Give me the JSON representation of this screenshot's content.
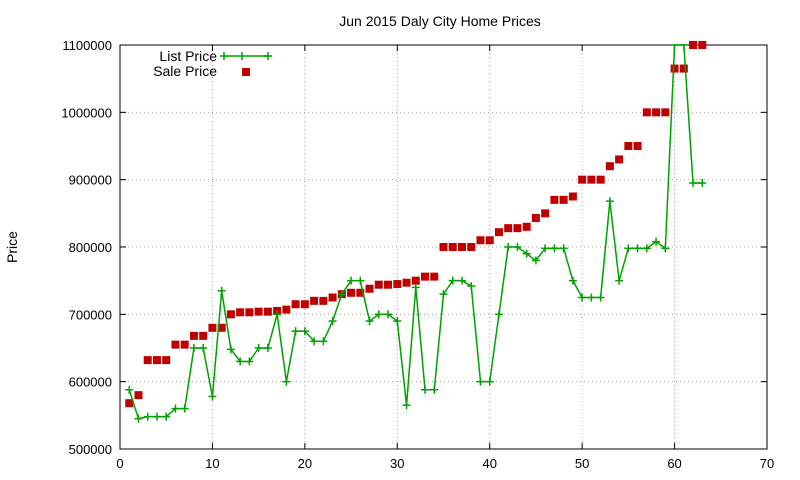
{
  "chart_data": {
    "type": "line",
    "title": "Jun 2015 Daly City Home Prices",
    "xlabel": "",
    "ylabel": "Price",
    "xlim": [
      0,
      70
    ],
    "ylim": [
      500000,
      1100000
    ],
    "xticks": [
      "0",
      "10",
      "20",
      "30",
      "40",
      "50",
      "60",
      "70"
    ],
    "yticks": [
      "500000",
      "600000",
      "700000",
      "800000",
      "900000",
      "1000000",
      "1100000"
    ],
    "grid": true,
    "legend_position": "top-left",
    "colors": {
      "list": "#00a000",
      "sale": "#c00000"
    },
    "series": [
      {
        "name": "List Price",
        "style": "line-with-plus-markers",
        "x": [
          1,
          2,
          3,
          4,
          5,
          6,
          7,
          8,
          9,
          10,
          11,
          12,
          13,
          14,
          15,
          16,
          17,
          18,
          19,
          20,
          21,
          22,
          23,
          24,
          25,
          26,
          27,
          28,
          29,
          30,
          31,
          32,
          33,
          34,
          35,
          36,
          37,
          38,
          39,
          40,
          41,
          42,
          43,
          44,
          45,
          46,
          47,
          48,
          49,
          50,
          51,
          52,
          53,
          54,
          55,
          56,
          57,
          58,
          59,
          60,
          61,
          62,
          63
        ],
        "values": [
          588000,
          545000,
          548000,
          548000,
          548000,
          560000,
          560000,
          650000,
          650000,
          578000,
          735000,
          648000,
          630000,
          630000,
          650000,
          650000,
          700000,
          600000,
          675000,
          675000,
          660000,
          660000,
          690000,
          730000,
          750000,
          750000,
          690000,
          700000,
          700000,
          690000,
          565000,
          740000,
          588000,
          588000,
          730000,
          750000,
          750000,
          742000,
          600000,
          600000,
          700000,
          800000,
          800000,
          790000,
          780000,
          798000,
          798000,
          798000,
          750000,
          725000,
          725000,
          725000,
          868000,
          750000,
          798000,
          798000,
          798000,
          808000,
          798000,
          1100000,
          1100000,
          895000,
          895000
        ]
      },
      {
        "name": "Sale Price",
        "style": "square-markers",
        "x": [
          1,
          2,
          3,
          4,
          5,
          6,
          7,
          8,
          9,
          10,
          11,
          12,
          13,
          14,
          15,
          16,
          17,
          18,
          19,
          20,
          21,
          22,
          23,
          24,
          25,
          26,
          27,
          28,
          29,
          30,
          31,
          32,
          33,
          34,
          35,
          36,
          37,
          38,
          39,
          40,
          41,
          42,
          43,
          44,
          45,
          46,
          47,
          48,
          49,
          50,
          51,
          52,
          53,
          54,
          55,
          56,
          57,
          58,
          59,
          60,
          61,
          62,
          63
        ],
        "values": [
          568000,
          580000,
          632000,
          632000,
          632000,
          655000,
          655000,
          668000,
          668000,
          680000,
          680000,
          700000,
          703000,
          703000,
          704000,
          704000,
          705000,
          707000,
          715000,
          715000,
          720000,
          720000,
          725000,
          730000,
          732000,
          732000,
          738000,
          744000,
          744000,
          745000,
          747000,
          750000,
          756000,
          756000,
          800000,
          800000,
          800000,
          800000,
          810000,
          810000,
          822000,
          828000,
          828000,
          830000,
          843000,
          850000,
          870000,
          870000,
          875000,
          900000,
          900000,
          900000,
          920000,
          930000,
          950000,
          950000,
          1000000,
          1000000,
          1000000,
          1065000,
          1065000,
          1100000,
          1100000
        ]
      }
    ]
  }
}
